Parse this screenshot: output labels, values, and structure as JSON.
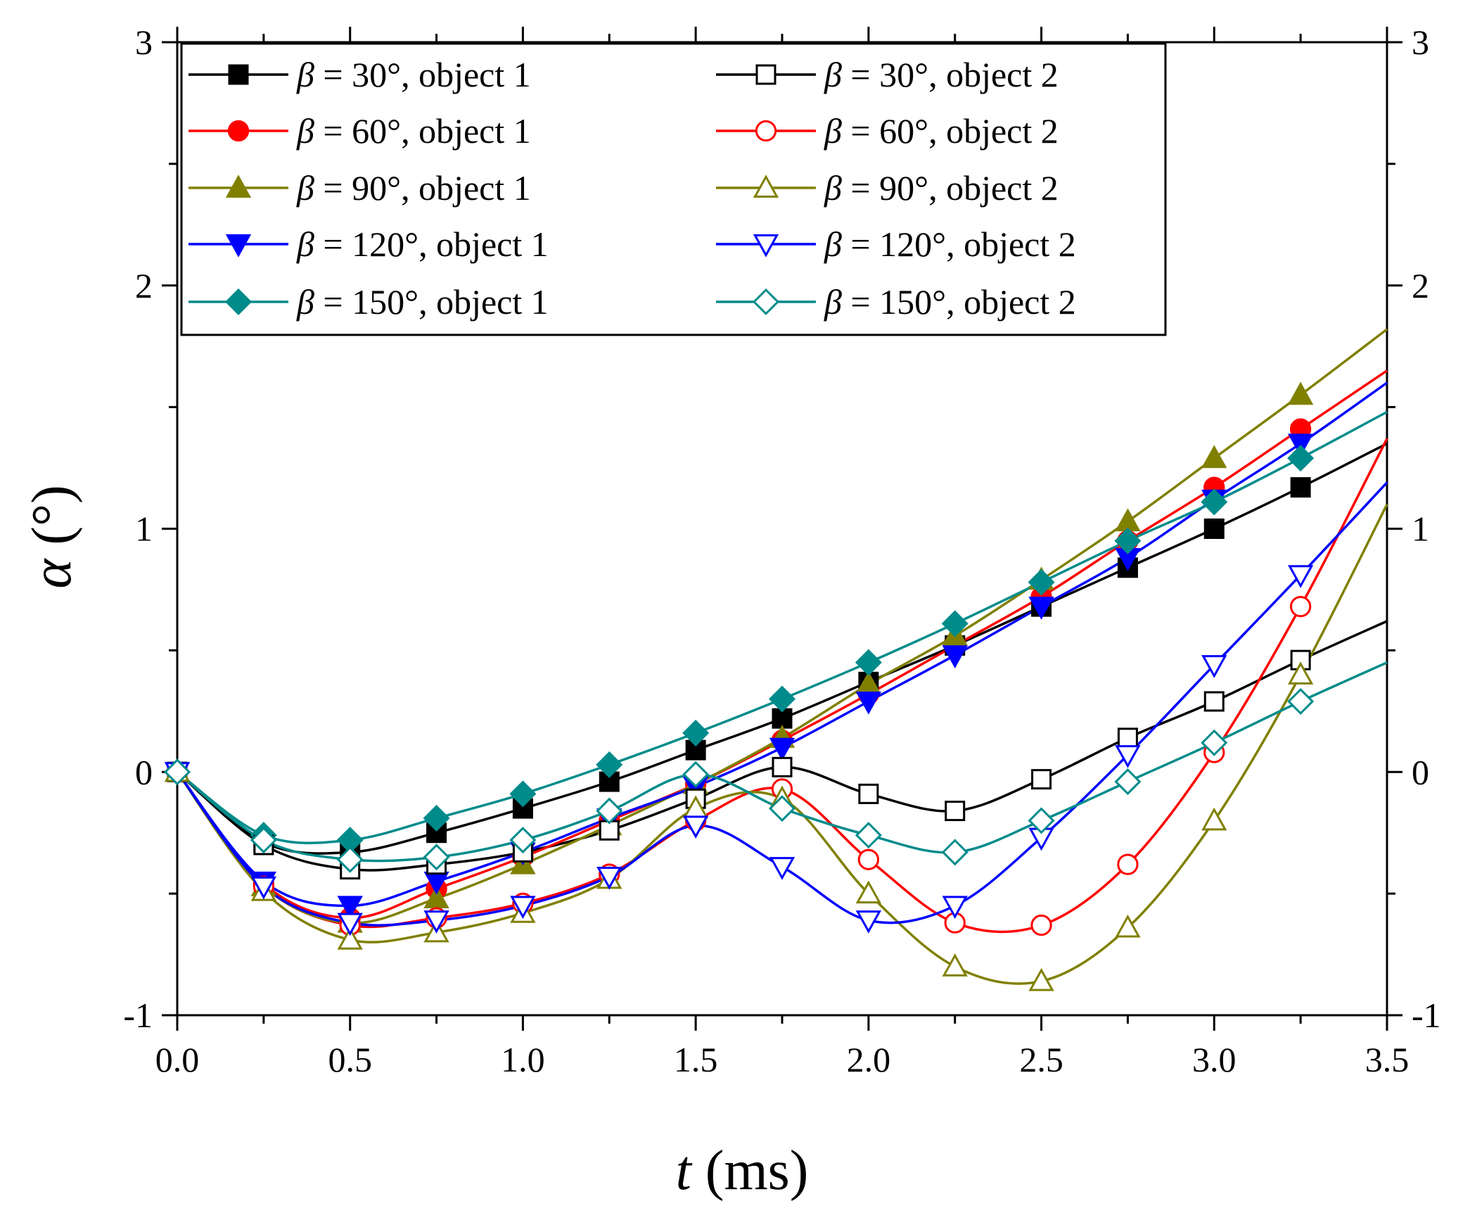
{
  "chart_data": {
    "type": "line",
    "xlabel": {
      "symbol": "t",
      "unit": " (ms)"
    },
    "ylabel": {
      "symbol": "α",
      "unit": " (°)"
    },
    "xlim": [
      0,
      3.5
    ],
    "ylim": [
      -1,
      3
    ],
    "x_ticks": [
      0,
      0.5,
      1,
      1.5,
      2,
      2.5,
      3,
      3.5
    ],
    "x_tick_labels": [
      "0.0",
      "0.5",
      "1.0",
      "1.5",
      "2.0",
      "2.5",
      "3.0",
      "3.5"
    ],
    "y_ticks": [
      -1,
      0,
      1,
      2,
      3
    ],
    "y_tick_labels": [
      "-1",
      "0",
      "1",
      "2",
      "3"
    ],
    "y_right_tick_labels": [
      "-1",
      "0",
      "1",
      "2",
      "3"
    ],
    "legend_position": "top-left",
    "x": [
      0,
      0.25,
      0.5,
      0.75,
      1.0,
      1.25,
      1.5,
      1.75,
      2.0,
      2.25,
      2.5,
      2.75,
      3.0,
      3.25
    ],
    "series": [
      {
        "name": "β = 30°,   object 1",
        "beta": "β",
        "rest": " = 30°,   object 1",
        "color": "#000000",
        "marker": "square",
        "filled": true,
        "values": [
          0,
          -0.29,
          -0.33,
          -0.25,
          -0.15,
          -0.04,
          0.09,
          0.22,
          0.37,
          0.52,
          0.68,
          0.84,
          1.0,
          1.17
        ],
        "end": 1.35
      },
      {
        "name": "β = 30°,   object 2",
        "beta": "β",
        "rest": " = 30°,   object 2",
        "color": "#000000",
        "marker": "square",
        "filled": false,
        "values": [
          0,
          -0.3,
          -0.4,
          -0.38,
          -0.33,
          -0.24,
          -0.11,
          0.02,
          -0.09,
          -0.16,
          -0.03,
          0.14,
          0.29,
          0.46
        ],
        "end": 0.62
      },
      {
        "name": "β = 60°,   object 1",
        "beta": "β",
        "rest": " = 60°,   object 1",
        "color": "#ff0000",
        "marker": "circle",
        "filled": true,
        "values": [
          0,
          -0.46,
          -0.6,
          -0.48,
          -0.35,
          -0.2,
          -0.05,
          0.13,
          0.32,
          0.52,
          0.72,
          0.95,
          1.17,
          1.41
        ],
        "end": 1.65
      },
      {
        "name": "β = 60°,   object 2",
        "beta": "β",
        "rest": " = 60°,   object 2",
        "color": "#ff0000",
        "marker": "circle",
        "filled": false,
        "values": [
          0,
          -0.47,
          -0.63,
          -0.6,
          -0.54,
          -0.42,
          -0.2,
          -0.07,
          -0.36,
          -0.62,
          -0.63,
          -0.38,
          0.08,
          0.68
        ],
        "end": 1.37
      },
      {
        "name": "β = 90°,   object 1",
        "beta": "β",
        "rest": " = 90°,   object 1",
        "color": "#808000",
        "marker": "triangle-up",
        "filled": true,
        "values": [
          0,
          -0.47,
          -0.62,
          -0.52,
          -0.38,
          -0.22,
          -0.05,
          0.14,
          0.36,
          0.56,
          0.79,
          1.03,
          1.29,
          1.55
        ],
        "end": 1.82
      },
      {
        "name": "β = 90°,   object 2",
        "beta": "β",
        "rest": " = 90°,   object 2",
        "color": "#808000",
        "marker": "triangle-up",
        "filled": false,
        "values": [
          0,
          -0.49,
          -0.69,
          -0.66,
          -0.58,
          -0.44,
          -0.15,
          -0.11,
          -0.5,
          -0.8,
          -0.86,
          -0.64,
          -0.2,
          0.4
        ],
        "end": 1.1
      },
      {
        "name": "β = 120°, object 1",
        "beta": "β",
        "rest": " = 120°, object 1",
        "color": "#0000ff",
        "marker": "triangle-down",
        "filled": true,
        "values": [
          0,
          -0.45,
          -0.55,
          -0.45,
          -0.33,
          -0.19,
          -0.06,
          0.1,
          0.29,
          0.48,
          0.68,
          0.88,
          1.12,
          1.35
        ],
        "end": 1.6
      },
      {
        "name": "β = 120°, object 2",
        "beta": "β",
        "rest": " = 120°, object 2",
        "color": "#0000ff",
        "marker": "triangle-down",
        "filled": false,
        "values": [
          0,
          -0.47,
          -0.62,
          -0.61,
          -0.55,
          -0.43,
          -0.22,
          -0.39,
          -0.61,
          -0.55,
          -0.27,
          0.07,
          0.44,
          0.81
        ],
        "end": 1.19
      },
      {
        "name": "β = 150°, object 1",
        "beta": "β",
        "rest": " = 150°, object 1",
        "color": "#008b8b",
        "marker": "diamond",
        "filled": true,
        "values": [
          0,
          -0.26,
          -0.28,
          -0.19,
          -0.09,
          0.03,
          0.16,
          0.3,
          0.45,
          0.61,
          0.78,
          0.95,
          1.11,
          1.29
        ],
        "end": 1.48
      },
      {
        "name": "β = 150°, object 2",
        "beta": "β",
        "rest": " = 150°, object 2",
        "color": "#008b8b",
        "marker": "diamond",
        "filled": false,
        "values": [
          0,
          -0.28,
          -0.36,
          -0.35,
          -0.28,
          -0.16,
          -0.01,
          -0.15,
          -0.26,
          -0.33,
          -0.2,
          -0.04,
          0.12,
          0.29
        ],
        "end": 0.45
      }
    ]
  }
}
